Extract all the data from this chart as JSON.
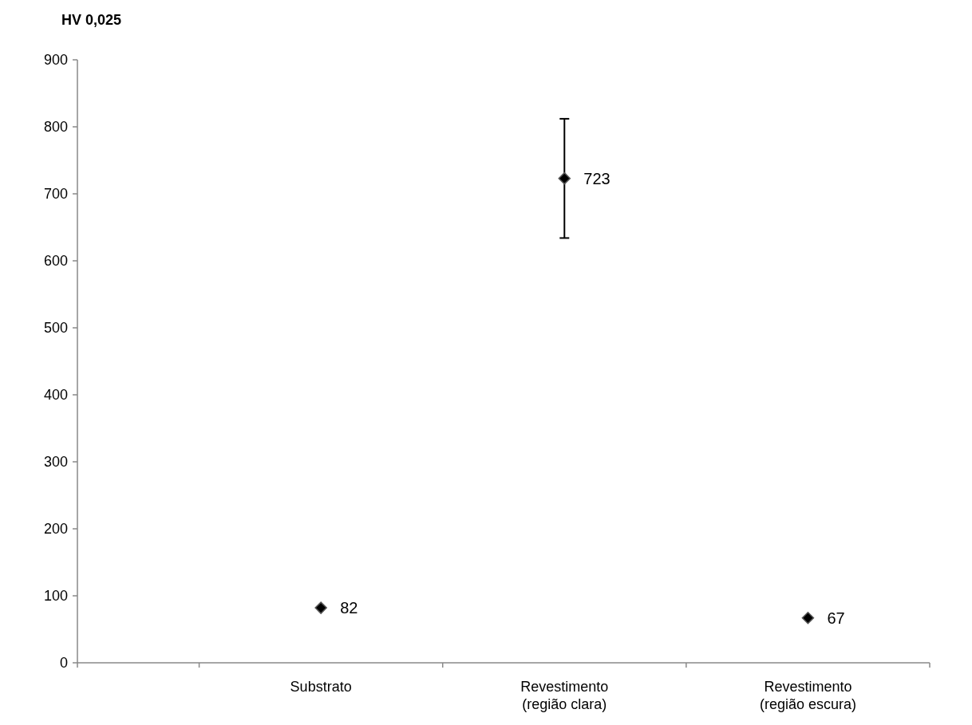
{
  "chart_data": {
    "type": "scatter",
    "ylabel": "HV 0,025",
    "categories": [
      "Substrato",
      "Revestimento (região clara)",
      "Revestimento (região escura)"
    ],
    "values": [
      82,
      723,
      67
    ],
    "errors": [
      null,
      89,
      null
    ],
    "color": "#000000",
    "marker": "diamond",
    "data_labels": true,
    "ylim": [
      0,
      900
    ],
    "yticks": [
      0,
      100,
      200,
      300,
      400,
      500,
      600,
      700,
      800,
      900
    ],
    "grid": false
  }
}
